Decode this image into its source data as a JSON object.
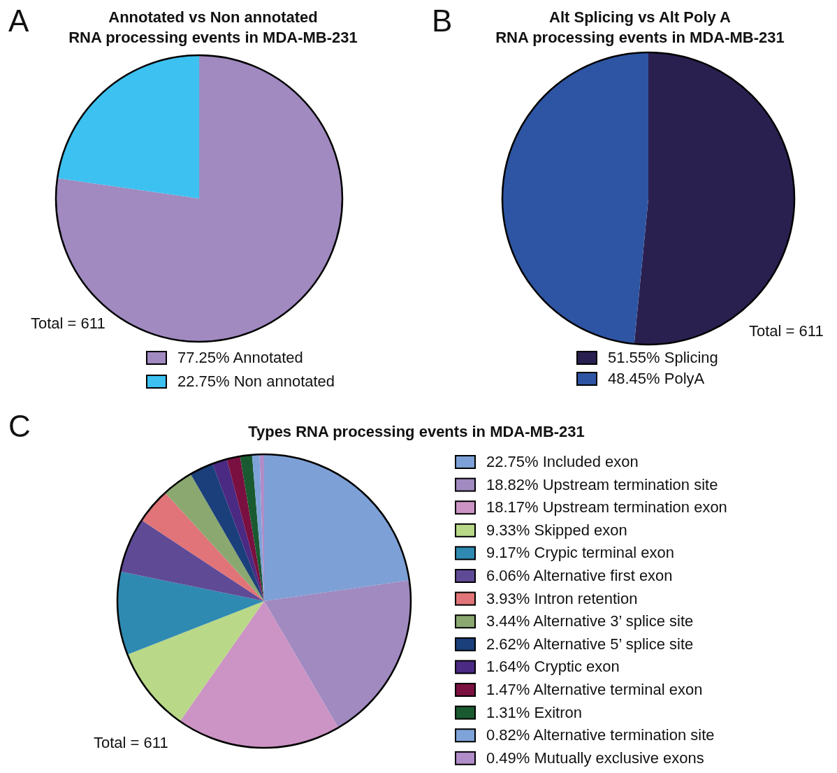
{
  "chart_data": [
    {
      "type": "pie",
      "title": "Annotated vs Non annotated\nRNA processing events in MDA-MB-231",
      "categories": [
        "77.25% Annotated",
        "22.75% Non annotated"
      ],
      "values": [
        77.25,
        22.75
      ],
      "colors": [
        "#a08ac0",
        "#3cc1f0"
      ],
      "legend": "bottom",
      "annotations": [
        "A",
        "Total = 611"
      ]
    },
    {
      "type": "pie",
      "title": "Alt Splicing vs Alt Poly A\nRNA processing events in MDA-MB-231",
      "categories": [
        "51.55% Splicing",
        "48.45% PolyA"
      ],
      "values": [
        51.55,
        48.45
      ],
      "colors": [
        "#2a2050",
        "#2e55a3"
      ],
      "legend": "bottom",
      "annotations": [
        "B",
        "Total = 611"
      ]
    },
    {
      "type": "pie",
      "title": "Types RNA processing events in MDA-MB-231",
      "categories": [
        "22.75% Included exon",
        "18.82% Upstream termination site",
        "18.17% Upstream termination exon",
        "9.33% Skipped exon",
        "9.17% Crypic terminal exon",
        "6.06% Alternative first exon",
        "3.93% Intron retention",
        "3.44% Alternative 3’ splice site",
        "2.62% Alternative 5’ splice site",
        "1.64% Cryptic exon",
        "1.47% Alternative terminal exon",
        "1.31% Exitron",
        "0.82% Alternative termination site",
        "0.49% Mutually exclusive exons"
      ],
      "values": [
        22.75,
        18.82,
        18.17,
        9.33,
        9.17,
        6.06,
        3.93,
        3.44,
        2.62,
        1.64,
        1.47,
        1.31,
        0.82,
        0.49
      ],
      "colors": [
        "#7da0d6",
        "#a08ac0",
        "#cc94c4",
        "#b9d888",
        "#2f8ab2",
        "#5f4a96",
        "#e07478",
        "#8aa870",
        "#1a3f7a",
        "#4a2a82",
        "#7a1040",
        "#1a5a30",
        "#7ea3d8",
        "#b08cc8"
      ],
      "legend": "right",
      "annotations": [
        "C",
        "Total = 611"
      ]
    }
  ]
}
